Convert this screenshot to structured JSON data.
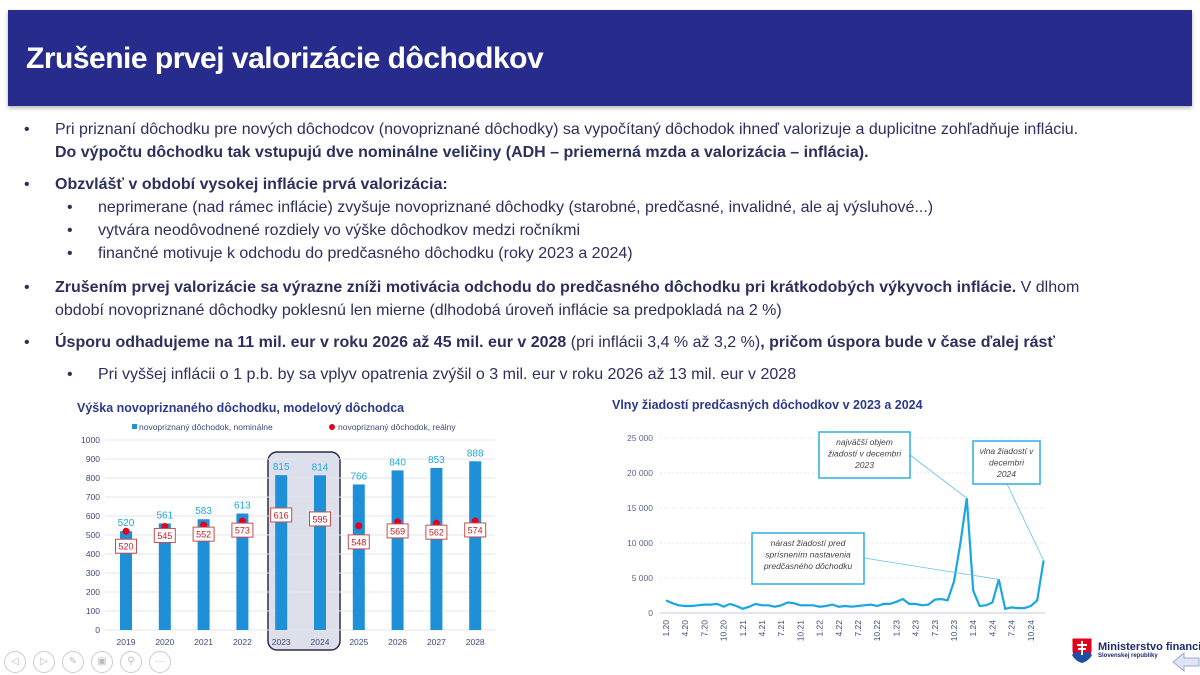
{
  "title": "Zrušenie prvej valorizácie dôchodkov",
  "bullets": {
    "b1_l1": "Pri priznaní dôchodku pre nových dôchodcov (novopriznané dôchodky) sa vypočítaný dôchodok ihneď valorizuje a duplicitne zohľadňuje infláciu.",
    "b1_l2": "Do výpočtu dôchodku tak vstupujú dve nominálne veličiny (ADH – priemerná mzda a valorizácia – inflácia).",
    "b2": "Obzvlášť v období vysokej inflácie prvá valorizácia:",
    "b2_s1": "neprimerane (nad rámec inflácie)  zvyšuje novopriznané dôchodky (starobné, predčasné, invalidné, ale aj výsluhové...)",
    "b2_s2": "vytvára neodôvodnené rozdiely vo výške dôchodkov medzi ročníkmi",
    "b2_s3": "finančné motivuje k odchodu do predčasného dôchodku (roky 2023 a 2024)",
    "b3_bold": "Zrušením prvej valorizácie sa výrazne zníži motivácia odchodu do predčasného dôchodku pri krátkodobých výkyvoch inflácie.",
    "b3_rest": " V dlhom",
    "b3_l2": "období novopriznané dôchodky poklesnú len mierne (dlhodobá úroveň inflácie sa predpokladá na 2 %)",
    "b4_bold": "Úsporu odhadujeme na 11 mil. eur v roku 2026 až 45 mil. eur v 2028",
    "b4_mid": " (pri inflácii 3,4 % až 3,2 %)",
    "b4_bold2": ", pričom úspora bude v čase ďalej rásť",
    "b4_s1": "Pri vyššej inflácii o 1 p.b. by sa vplyv opatrenia zvýšil o 3 mil. eur v roku 2026 až 13 mil. eur v 2028",
    "bullet_char": "•"
  },
  "chart_data": [
    {
      "type": "bar",
      "title": "Výška novopriznaného dôchodku, modelový dôchodca",
      "categories": [
        "2019",
        "2020",
        "2021",
        "2022",
        "2023",
        "2024",
        "2025",
        "2026",
        "2027",
        "2028"
      ],
      "series": [
        {
          "name": "novopriznaný dôchodok, nominálne",
          "type": "bar",
          "color": "#1f8fd8",
          "values": [
            520,
            561,
            583,
            613,
            815,
            814,
            766,
            840,
            853,
            888
          ]
        },
        {
          "name": "novopriznaný dôchodok, reálny",
          "type": "scatter",
          "color": "#e3001b",
          "values": [
            520,
            545,
            552,
            573,
            616,
            595,
            548,
            569,
            562,
            574
          ]
        }
      ],
      "ylim": [
        0,
        1000
      ],
      "yticks": [
        "0",
        "100",
        "200",
        "300",
        "400",
        "500",
        "600",
        "700",
        "800",
        "900",
        "1000"
      ],
      "highlight": [
        "2023",
        "2024"
      ],
      "legend": "top"
    },
    {
      "type": "line",
      "title": "Vlny žiadostí predčasných dôchodkov v 2023 a 2024",
      "ylim": [
        0,
        25000
      ],
      "yticks": [
        "0",
        "5 000",
        "10 000",
        "15 000",
        "20 000",
        "25 000"
      ],
      "xticks": [
        "1.20",
        "4.20",
        "7.20",
        "10.20",
        "1.21",
        "4.21",
        "7.21",
        "10.21",
        "1.22",
        "4.22",
        "7.22",
        "10.22",
        "1.23",
        "4.23",
        "7.23",
        "10.23",
        "1.24",
        "4.24",
        "7.24",
        "10.24"
      ],
      "color": "#1aa7e0",
      "values": [
        1800,
        1400,
        1100,
        1000,
        1000,
        1100,
        1200,
        1200,
        1300,
        900,
        1300,
        1000,
        600,
        900,
        1300,
        1100,
        1100,
        900,
        1100,
        1500,
        1400,
        1100,
        1100,
        1100,
        900,
        1000,
        1200,
        900,
        1000,
        900,
        1000,
        1100,
        1200,
        1000,
        1300,
        1300,
        1600,
        2000,
        1300,
        1300,
        1100,
        1200,
        1900,
        2000,
        1800,
        4500,
        10000,
        16400,
        3200,
        1000,
        1100,
        1500,
        4800,
        600,
        800,
        700,
        700,
        1000,
        1800,
        7500
      ],
      "annotations": [
        {
          "text": "najväčší objem žiadostí  v decembri 2023",
          "lines": [
            "najväčší objem",
            "žiadostí  v decembri",
            "2023"
          ],
          "point_index": 47
        },
        {
          "text": "vlna žiadostí v decembri 2024",
          "lines": [
            "vlna žiadostí v",
            "decembri",
            "2024"
          ],
          "point_index": 59
        },
        {
          "text": "nárast žiadostí pred sprísnením nastavenia predčasného dôchodku",
          "lines": [
            "nárast žiadostí pred",
            "sprísnením nastavenia",
            "predčasného dôchodku"
          ],
          "point_index": 52
        }
      ]
    }
  ],
  "footer": {
    "ministry": "Ministerstvo financií",
    "ministry_sub": "Slovenskej republiky",
    "nav": [
      "previous",
      "next",
      "pen",
      "slides",
      "zoom",
      "more"
    ],
    "nav_glyphs": [
      "◁",
      "▷",
      "✎",
      "▣",
      "⚲",
      "···"
    ]
  }
}
